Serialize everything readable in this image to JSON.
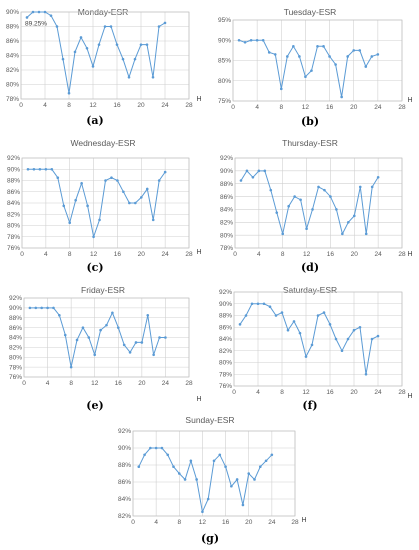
{
  "chart_data": [
    {
      "type": "line",
      "title": "Monday-ESR",
      "panel_label": "(a)",
      "xlabel": "H",
      "ylim": [
        78,
        90
      ],
      "yticks": [
        78,
        80,
        82,
        84,
        86,
        88,
        90
      ],
      "yformat": "percent",
      "xlim": [
        0,
        28
      ],
      "xticks": [
        0,
        4,
        8,
        12,
        16,
        20,
        24,
        28
      ],
      "x": [
        1,
        2,
        3,
        4,
        5,
        6,
        7,
        8,
        9,
        10,
        11,
        12,
        13,
        14,
        15,
        16,
        17,
        18,
        19,
        20,
        21,
        22,
        23,
        24
      ],
      "y": [
        89.25,
        90,
        90,
        90,
        89.5,
        88,
        83.5,
        78.8,
        84.5,
        86.5,
        85,
        82.5,
        85.5,
        88,
        88,
        85.5,
        83.5,
        81,
        83.5,
        85.5,
        85.5,
        81,
        88,
        88.5
      ],
      "annotation": {
        "text": "89.25%",
        "x": 1,
        "y": 89.25
      },
      "grid": true,
      "color": "#5b9bd5"
    },
    {
      "type": "line",
      "title": "Tuesday-ESR",
      "panel_label": "(b)",
      "xlabel": "H",
      "ylim": [
        75,
        95
      ],
      "yticks": [
        75,
        80,
        85,
        90,
        95
      ],
      "yformat": "percent",
      "xlim": [
        0,
        28
      ],
      "xticks": [
        0,
        4,
        8,
        12,
        16,
        20,
        24,
        28
      ],
      "x": [
        1,
        2,
        3,
        4,
        5,
        6,
        7,
        8,
        9,
        10,
        11,
        12,
        13,
        14,
        15,
        16,
        17,
        18,
        19,
        20,
        21,
        22,
        23,
        24
      ],
      "y": [
        90,
        89.5,
        90,
        90,
        90,
        87,
        86.5,
        78,
        86,
        88.5,
        86,
        81,
        82.5,
        88.5,
        88.5,
        86,
        84,
        76,
        86,
        87.5,
        87.5,
        83.5,
        86,
        86.5
      ],
      "grid": true,
      "color": "#5b9bd5"
    },
    {
      "type": "line",
      "title": "Wednesday-ESR",
      "panel_label": "(c)",
      "xlabel": "H",
      "ylim": [
        76,
        92
      ],
      "yticks": [
        76,
        78,
        80,
        82,
        84,
        86,
        88,
        90,
        92
      ],
      "yformat": "percent",
      "xlim": [
        0,
        28
      ],
      "xticks": [
        0,
        4,
        8,
        12,
        16,
        20,
        24,
        28
      ],
      "x": [
        1,
        2,
        3,
        4,
        5,
        6,
        7,
        8,
        9,
        10,
        11,
        12,
        13,
        14,
        15,
        16,
        17,
        18,
        19,
        20,
        21,
        22,
        23,
        24
      ],
      "y": [
        90,
        90,
        90,
        90,
        90,
        88.5,
        83.5,
        80.5,
        84.5,
        87.5,
        83.5,
        78,
        81,
        88,
        88.5,
        88,
        86,
        84,
        84,
        85,
        86.5,
        81,
        88,
        89.5
      ],
      "grid": true,
      "color": "#5b9bd5"
    },
    {
      "type": "line",
      "title": "Thursday-ESR",
      "panel_label": "(d)",
      "xlabel": "H",
      "ylim": [
        78,
        92
      ],
      "yticks": [
        78,
        80,
        82,
        84,
        86,
        88,
        90,
        92
      ],
      "yformat": "percent",
      "xlim": [
        0,
        28
      ],
      "xticks": [
        0,
        4,
        8,
        12,
        16,
        20,
        24,
        28
      ],
      "x": [
        1,
        2,
        3,
        4,
        5,
        6,
        7,
        8,
        9,
        10,
        11,
        12,
        13,
        14,
        15,
        16,
        17,
        18,
        19,
        20,
        21,
        22,
        23,
        24
      ],
      "y": [
        88.5,
        90,
        89,
        90,
        90,
        87,
        83.5,
        80.2,
        84.5,
        86,
        85.5,
        81,
        84,
        87.5,
        87,
        86,
        84,
        80.2,
        82,
        83,
        87.5,
        80.2,
        87.5,
        89
      ],
      "grid": true,
      "color": "#5b9bd5"
    },
    {
      "type": "line",
      "title": "Friday-ESR",
      "panel_label": "(e)",
      "xlabel": "H",
      "ylim": [
        76,
        92
      ],
      "yticks": [
        76,
        78,
        80,
        82,
        84,
        86,
        88,
        90,
        92
      ],
      "yformat": "percent",
      "xlim": [
        0,
        28
      ],
      "xticks": [
        0,
        4,
        8,
        12,
        16,
        20,
        24,
        28
      ],
      "x": [
        1,
        2,
        3,
        4,
        5,
        6,
        7,
        8,
        9,
        10,
        11,
        12,
        13,
        14,
        15,
        16,
        17,
        18,
        19,
        20,
        21,
        22,
        23,
        24
      ],
      "y": [
        90,
        90,
        90,
        90,
        90,
        88.5,
        84.5,
        78,
        83.5,
        86,
        84,
        80.5,
        85.5,
        86.5,
        89,
        86,
        82.5,
        81,
        83,
        83,
        88.5,
        80.5,
        84,
        84
      ],
      "grid": true,
      "color": "#5b9bd5"
    },
    {
      "type": "line",
      "title": "Saturday-ESR",
      "panel_label": "(f)",
      "xlabel": "H",
      "ylim": [
        76,
        92
      ],
      "yticks": [
        76,
        78,
        80,
        82,
        84,
        86,
        88,
        90,
        92
      ],
      "yformat": "percent",
      "xlim": [
        0,
        28
      ],
      "xticks": [
        0,
        4,
        8,
        12,
        16,
        20,
        24,
        28
      ],
      "x": [
        1,
        2,
        3,
        4,
        5,
        6,
        7,
        8,
        9,
        10,
        11,
        12,
        13,
        14,
        15,
        16,
        17,
        18,
        19,
        20,
        21,
        22,
        23,
        24
      ],
      "y": [
        86.5,
        88,
        90,
        90,
        90,
        89.5,
        88,
        88.5,
        85.5,
        87,
        85,
        81,
        83,
        88,
        88.5,
        86.5,
        84,
        82,
        84,
        85.5,
        86,
        78,
        84,
        84.5
      ],
      "grid": true,
      "color": "#5b9bd5"
    },
    {
      "type": "line",
      "title": "Sunday-ESR",
      "panel_label": "(g)",
      "xlabel": "H",
      "ylim": [
        82,
        92
      ],
      "yticks": [
        82,
        84,
        86,
        88,
        90,
        92
      ],
      "yformat": "percent",
      "xlim": [
        0,
        28
      ],
      "xticks": [
        0,
        4,
        8,
        12,
        16,
        20,
        24,
        28
      ],
      "x": [
        1,
        2,
        3,
        4,
        5,
        6,
        7,
        8,
        9,
        10,
        11,
        12,
        13,
        14,
        15,
        16,
        17,
        18,
        19,
        20,
        21,
        22,
        23,
        24
      ],
      "y": [
        87.8,
        89.2,
        90,
        90,
        90,
        89.2,
        87.8,
        87,
        86.3,
        88.5,
        86.3,
        82.5,
        84,
        88.5,
        89.2,
        87.8,
        85.5,
        86.3,
        83.3,
        87,
        86.3,
        87.8,
        88.5,
        89.2
      ],
      "grid": true,
      "color": "#5b9bd5"
    }
  ]
}
